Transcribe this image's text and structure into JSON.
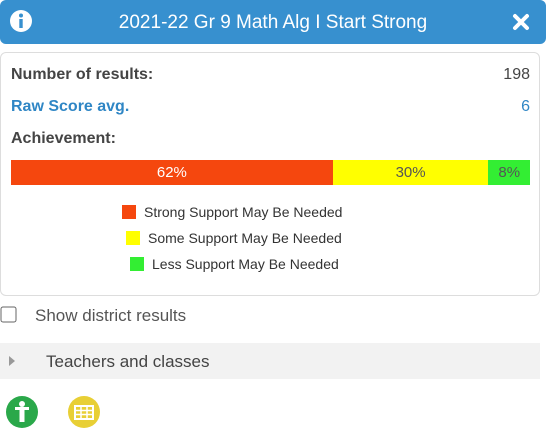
{
  "header": {
    "title": "2021-22 Gr 9 Math Alg I Start Strong"
  },
  "stats": [
    {
      "label": "Number of results:",
      "value": "198"
    },
    {
      "label": "Raw Score avg.",
      "value": "6"
    }
  ],
  "achievement": {
    "label": "Achievement:",
    "segments": [
      {
        "name": "Strong Support May Be Needed",
        "color": "#f5470e",
        "value": 62,
        "label": "62%"
      },
      {
        "name": "Some Support May Be Needed",
        "color": "#ffff00",
        "value": 30,
        "label": "30%"
      },
      {
        "name": "Less Support May Be Needed",
        "color": "#33ee33",
        "value": 8,
        "label": "8%"
      }
    ]
  },
  "options": {
    "district": "Show district results"
  },
  "sections": [
    {
      "label": "Teachers and classes"
    }
  ]
}
